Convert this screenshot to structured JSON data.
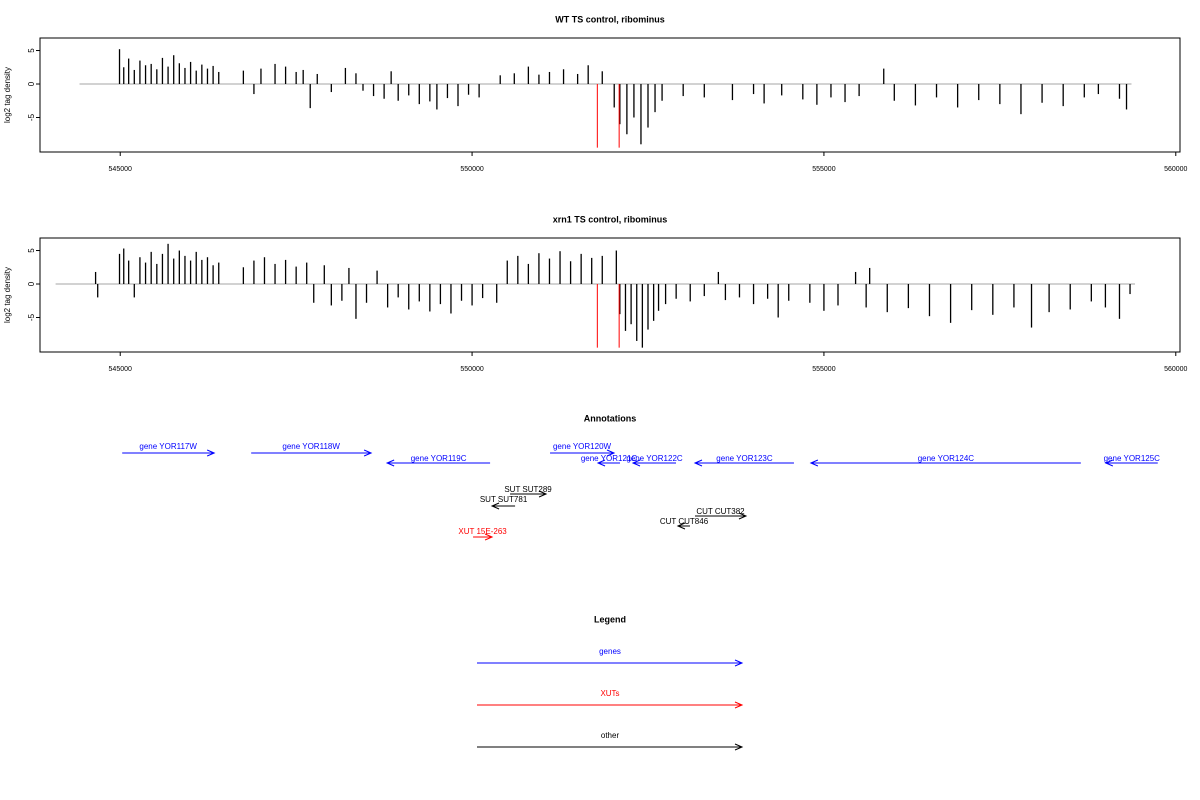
{
  "chart_data": [
    {
      "type": "needle",
      "title": "WT TS control, ribominus",
      "y_label": "log2 tag density",
      "xlim": [
        543860,
        560060
      ],
      "xticks": [
        545000,
        550000,
        555000,
        560000
      ],
      "ylim": [
        -10.15,
        6.87
      ],
      "yticks": [
        -5,
        0,
        5
      ],
      "series": [
        {
          "color": "#000000",
          "x": [
            544990,
            545050,
            545120,
            545200,
            545280,
            545360,
            545440,
            545520,
            545600,
            545680,
            545760,
            545840,
            545920,
            546000,
            546080,
            546160,
            546240,
            546320,
            546400,
            546750,
            546900,
            547000,
            547200,
            547350,
            547500,
            547600,
            547700,
            547800,
            548000,
            548200,
            548350,
            548450,
            548600,
            548750,
            548850,
            548950,
            549100,
            549250,
            549400,
            549500,
            549650,
            549800,
            549950,
            550100,
            550400,
            550600,
            550800,
            550950,
            551100,
            551300,
            551500,
            551650,
            551850,
            552020,
            552100,
            552200,
            552300,
            552400,
            552500,
            552600,
            552700,
            553000,
            553300,
            553700,
            554000,
            554150,
            554400,
            554700,
            554900,
            555100,
            555300,
            555500,
            555850,
            556000,
            556300,
            556600,
            556900,
            557200,
            557500,
            557800,
            558100,
            558400,
            558700,
            558900,
            559200,
            559300
          ],
          "values": [
            5.2,
            2.5,
            3.8,
            2.1,
            3.5,
            2.8,
            3.0,
            2.2,
            3.9,
            2.6,
            4.3,
            3.1,
            2.4,
            3.3,
            2.0,
            2.9,
            2.3,
            2.7,
            1.8,
            2.0,
            -1.5,
            2.3,
            3.0,
            2.6,
            1.8,
            2.1,
            -3.6,
            1.5,
            -1.2,
            2.4,
            1.6,
            -1.0,
            -1.8,
            -2.2,
            1.9,
            -2.5,
            -1.7,
            -3.0,
            -2.6,
            -3.8,
            -2.1,
            -3.3,
            -1.6,
            -2.0,
            1.3,
            1.6,
            2.6,
            1.4,
            1.8,
            2.2,
            1.5,
            2.8,
            1.9,
            -3.5,
            -6.0,
            -7.5,
            -5.0,
            -9.0,
            -6.5,
            -4.2,
            -2.5,
            -1.8,
            -2.0,
            -2.4,
            -1.5,
            -2.9,
            -1.7,
            -2.3,
            -3.1,
            -2.0,
            -2.7,
            -1.8,
            2.3,
            -2.5,
            -3.2,
            -2.0,
            -3.5,
            -2.4,
            -3.0,
            -4.5,
            -2.8,
            -3.3,
            -2.0,
            -1.5,
            -2.2,
            -3.8
          ]
        },
        {
          "color": "#ff0000",
          "x": [
            551780,
            552090
          ],
          "values": [
            -9.5,
            -9.5
          ]
        }
      ]
    },
    {
      "type": "needle",
      "title": "xrn1 TS control, ribominus",
      "y_label": "log2 tag density",
      "xlim": [
        543860,
        560060
      ],
      "xticks": [
        545000,
        550000,
        555000,
        560000
      ],
      "ylim": [
        -10.15,
        6.87
      ],
      "yticks": [
        -5,
        0,
        5
      ],
      "series": [
        {
          "color": "#000000",
          "x": [
            544650,
            544680,
            544990,
            545050,
            545120,
            545200,
            545280,
            545360,
            545440,
            545520,
            545600,
            545680,
            545760,
            545840,
            545920,
            546000,
            546080,
            546160,
            546240,
            546320,
            546400,
            546750,
            546900,
            547050,
            547200,
            547350,
            547500,
            547650,
            547750,
            547900,
            548000,
            548150,
            548250,
            548350,
            548500,
            548650,
            548800,
            548950,
            549100,
            549250,
            549400,
            549550,
            549700,
            549850,
            550000,
            550150,
            550350,
            550500,
            550650,
            550800,
            550950,
            551100,
            551250,
            551400,
            551550,
            551700,
            551850,
            552050,
            552100,
            552180,
            552260,
            552340,
            552420,
            552500,
            552580,
            552650,
            552750,
            552900,
            553100,
            553300,
            553500,
            553600,
            553800,
            554000,
            554200,
            554350,
            554500,
            554800,
            555000,
            555200,
            555450,
            555600,
            555650,
            555900,
            556200,
            556500,
            556800,
            557100,
            557400,
            557700,
            557950,
            558200,
            558500,
            558800,
            559000,
            559200,
            559350
          ],
          "values": [
            1.8,
            -2.0,
            4.5,
            5.3,
            3.5,
            -2.0,
            4.0,
            3.2,
            4.8,
            3.0,
            4.5,
            6.0,
            3.8,
            5.0,
            4.2,
            3.5,
            4.8,
            3.6,
            4.0,
            2.8,
            3.2,
            2.5,
            3.5,
            4.0,
            3.0,
            3.6,
            2.6,
            3.2,
            -2.8,
            2.8,
            -3.2,
            -2.5,
            2.4,
            -5.2,
            -2.8,
            2.0,
            -3.5,
            -2.0,
            -3.8,
            -2.6,
            -4.1,
            -3.0,
            -4.4,
            -2.5,
            -3.2,
            -2.1,
            -2.8,
            3.5,
            4.2,
            3.0,
            4.6,
            3.8,
            4.9,
            3.4,
            4.5,
            3.9,
            4.2,
            5.0,
            -4.5,
            -7.0,
            -6.0,
            -8.5,
            -9.5,
            -6.8,
            -5.5,
            -4.0,
            -3.0,
            -2.2,
            -2.6,
            -1.8,
            1.8,
            -2.4,
            -2.0,
            -3.0,
            -2.2,
            -5.0,
            -2.5,
            -2.8,
            -4.0,
            -3.2,
            1.8,
            -3.5,
            2.4,
            -4.2,
            -3.6,
            -4.8,
            -5.8,
            -3.9,
            -4.6,
            -3.5,
            -6.5,
            -4.2,
            -3.8,
            -2.6,
            -3.5,
            -5.2,
            -1.5
          ]
        },
        {
          "color": "#ff0000",
          "x": [
            551780,
            552090
          ],
          "values": [
            -9.5,
            -9.5
          ]
        }
      ]
    }
  ],
  "annotations": {
    "title": "Annotations",
    "features": [
      {
        "label": "gene YOR117W",
        "start": 545028,
        "end": 546335,
        "strand": "+",
        "color": "#0000ff"
      },
      {
        "label": "gene YOR118W",
        "start": 546861,
        "end": 548565,
        "strand": "+",
        "color": "#0000ff"
      },
      {
        "label": "gene YOR119C",
        "start": 548793,
        "end": 550256,
        "strand": "-",
        "color": "#0000ff"
      },
      {
        "label": "gene YOR120W",
        "start": 551108,
        "end": 552017,
        "strand": "+",
        "color": "#0000ff"
      },
      {
        "label": "gene YOR121C",
        "start": 551790,
        "end": 552102,
        "strand": "-",
        "color": "#0000ff"
      },
      {
        "label": "gene YOR122C",
        "start": 552287,
        "end": 552898,
        "strand": "-",
        "color": "#0000ff"
      },
      {
        "label": "gene YOR123C",
        "start": 553168,
        "end": 554574,
        "strand": "-",
        "color": "#0000ff"
      },
      {
        "label": "gene YOR124C",
        "start": 554815,
        "end": 558651,
        "strand": "-",
        "color": "#0000ff"
      },
      {
        "label": "gene YOR125C",
        "start": 559006,
        "end": 559744,
        "strand": "-",
        "color": "#0000ff"
      },
      {
        "label": "SUT SUT289",
        "start": 550540,
        "end": 551051,
        "strand": "+",
        "color": "#000000"
      },
      {
        "label": "SUT SUT781",
        "start": 550284,
        "end": 550611,
        "strand": "-",
        "color": "#000000"
      },
      {
        "label": "CUT CUT382",
        "start": 553168,
        "end": 553892,
        "strand": "+",
        "color": "#000000"
      },
      {
        "label": "CUT CUT846",
        "start": 552926,
        "end": 553097,
        "strand": "-",
        "color": "#000000"
      },
      {
        "label": "XUT 15E-263",
        "start": 550014,
        "end": 550284,
        "strand": "+",
        "color": "#ff0000"
      }
    ]
  },
  "legend": {
    "title": "Legend",
    "items": [
      {
        "label": "genes",
        "color": "#0000ff"
      },
      {
        "label": "XUTs",
        "color": "#ff0000"
      },
      {
        "label": "other",
        "color": "#000000"
      }
    ]
  }
}
